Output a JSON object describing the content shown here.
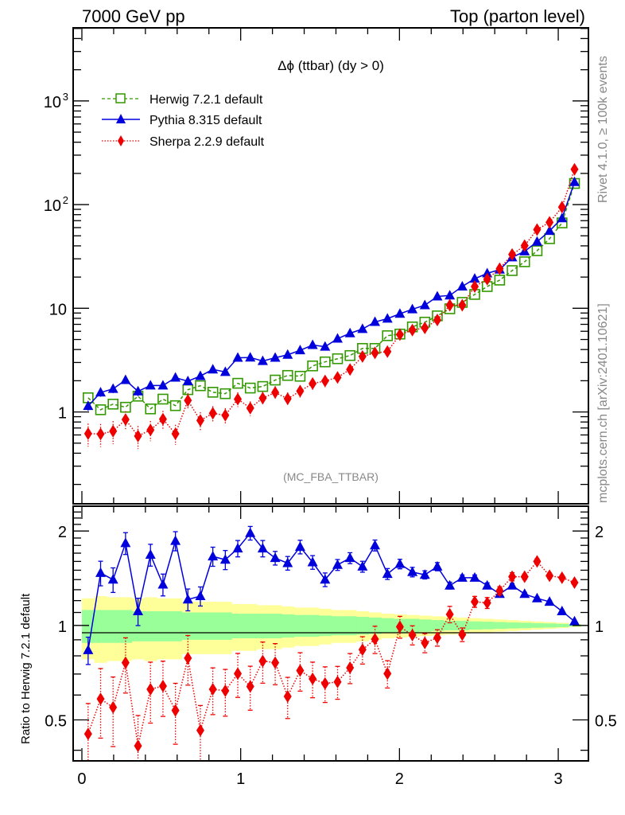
{
  "header": {
    "left": "7000 GeV pp",
    "right": "Top (parton level)"
  },
  "side_text": {
    "rivet": "Rivet 4.1.0, ≥ 100k events",
    "mcplots": "mcplots.cern.ch [arXiv:2401.10621]"
  },
  "chart_data": [
    {
      "type": "line",
      "title": "Δϕ (ttbar) (dy > 0)",
      "watermark": "(MC_FBA_TTBAR)",
      "xlabel": "",
      "ylabel": "",
      "yscale": "log",
      "xlim": [
        -0.055,
        3.19
      ],
      "ylim": [
        0.13,
        5070
      ],
      "x_ticks": [
        0,
        1,
        2,
        3
      ],
      "y_ticks": [
        {
          "value": 1000,
          "label": "10",
          "sup": "3"
        },
        {
          "value": 100,
          "label": "10",
          "sup": "2"
        },
        {
          "value": 10,
          "label": "10",
          "sup": ""
        },
        {
          "value": 1,
          "label": "1",
          "sup": ""
        }
      ],
      "legend_position": "top-left",
      "bins": 40,
      "x_range": [
        0,
        3.14159
      ],
      "series": [
        {
          "name": "Herwig 7.2.1 default",
          "color": "#339900",
          "marker": "open-square",
          "linestyle": "dashed",
          "values": [
            1.37,
            1.05,
            1.19,
            1.11,
            1.42,
            1.07,
            1.33,
            1.15,
            1.64,
            1.79,
            1.55,
            1.5,
            1.89,
            1.7,
            1.76,
            2.03,
            2.25,
            2.21,
            2.78,
            3.04,
            3.26,
            3.5,
            4.1,
            4.1,
            5.44,
            5.64,
            6.61,
            7.35,
            8.45,
            9.89,
            11.4,
            13.6,
            16.2,
            18.7,
            23.1,
            28.1,
            35.9,
            46.9,
            66.6,
            160
          ]
        },
        {
          "name": "Pythia 8.315 default",
          "color": "#0000dd",
          "marker": "filled-triangle",
          "linestyle": "solid",
          "values": [
            1.14,
            1.54,
            1.67,
            2.03,
            1.58,
            1.8,
            1.8,
            2.14,
            1.98,
            2.22,
            2.57,
            2.43,
            3.33,
            3.35,
            3.1,
            3.33,
            3.56,
            3.93,
            4.42,
            4.26,
            5.09,
            5.74,
            6.31,
            7.38,
            7.94,
            8.85,
            9.78,
            10.7,
            13.0,
            13.3,
            16.2,
            19.3,
            21.7,
            23.6,
            31.0,
            35.4,
            43.8,
            55.8,
            73.9,
            165
          ]
        },
        {
          "name": "Sherpa 2.2.9 default",
          "color": "#ee0000",
          "marker": "filled-diamond",
          "linestyle": "dotted",
          "values": [
            0.618,
            0.612,
            0.652,
            0.845,
            0.586,
            0.67,
            0.853,
            0.616,
            1.29,
            0.829,
            0.97,
            0.929,
            1.33,
            1.09,
            1.36,
            1.54,
            1.34,
            1.59,
            1.88,
            1.99,
            2.15,
            2.57,
            3.43,
            3.71,
            3.82,
            5.58,
            6.16,
            6.47,
            7.72,
            10.7,
            10.7,
            16.2,
            19.1,
            24.1,
            33.0,
            40.2,
            57.4,
            67.5,
            94.6,
            219
          ]
        }
      ]
    },
    {
      "type": "line",
      "title": "",
      "xlabel": "",
      "ylabel": "Ratio to Herwig 7.2.1 default",
      "yscale": "log",
      "xlim": [
        -0.055,
        3.19
      ],
      "ylim": [
        0.37,
        2.4
      ],
      "x_ticks": [
        0,
        1,
        2,
        3
      ],
      "y_ticks": [
        {
          "value": 2,
          "label": "2"
        },
        {
          "value": 1,
          "label": "1"
        },
        {
          "value": 0.5,
          "label": "0.5"
        }
      ],
      "reference_line": 1,
      "band_inner_halfwidth": [
        0.12,
        0.12,
        0.12,
        0.12,
        0.11,
        0.11,
        0.11,
        0.11,
        0.1,
        0.1,
        0.1,
        0.1,
        0.09,
        0.09,
        0.09,
        0.09,
        0.085,
        0.08,
        0.08,
        0.075,
        0.07,
        0.07,
        0.065,
        0.06,
        0.055,
        0.05,
        0.05,
        0.045,
        0.04,
        0.035,
        0.035,
        0.03,
        0.028,
        0.025,
        0.022,
        0.02,
        0.017,
        0.015,
        0.012,
        0.008
      ],
      "band_outer_halfwidth": [
        0.22,
        0.24,
        0.23,
        0.23,
        0.22,
        0.23,
        0.22,
        0.22,
        0.19,
        0.19,
        0.19,
        0.19,
        0.17,
        0.17,
        0.16,
        0.16,
        0.15,
        0.14,
        0.14,
        0.13,
        0.12,
        0.12,
        0.11,
        0.1,
        0.09,
        0.085,
        0.08,
        0.075,
        0.07,
        0.065,
        0.06,
        0.055,
        0.05,
        0.045,
        0.04,
        0.035,
        0.03,
        0.025,
        0.02,
        0.012
      ],
      "series": [
        {
          "name": "Pythia 8.315 default",
          "color": "#0000dd",
          "values": [
            0.834,
            1.47,
            1.4,
            1.83,
            1.11,
            1.68,
            1.35,
            1.86,
            1.21,
            1.24,
            1.66,
            1.62,
            1.76,
            1.97,
            1.76,
            1.64,
            1.58,
            1.78,
            1.59,
            1.4,
            1.56,
            1.64,
            1.54,
            1.8,
            1.46,
            1.57,
            1.48,
            1.45,
            1.54,
            1.34,
            1.42,
            1.42,
            1.34,
            1.26,
            1.34,
            1.26,
            1.22,
            1.19,
            1.11,
            1.03
          ],
          "rel_err": [
            0.1,
            0.09,
            0.09,
            0.08,
            0.1,
            0.08,
            0.08,
            0.07,
            0.08,
            0.07,
            0.07,
            0.07,
            0.06,
            0.05,
            0.06,
            0.05,
            0.05,
            0.05,
            0.05,
            0.05,
            0.04,
            0.04,
            0.04,
            0.04,
            0.04,
            0.035,
            0.035,
            0.03,
            0.03,
            0.025,
            0.02,
            0.02,
            0.02,
            0.015,
            0.015,
            0.012,
            0.01,
            0.01,
            0.008,
            0.005
          ]
        },
        {
          "name": "Sherpa 2.2.9 default",
          "color": "#ee0000",
          "values": [
            0.451,
            0.583,
            0.548,
            0.761,
            0.413,
            0.626,
            0.641,
            0.536,
            0.787,
            0.463,
            0.626,
            0.619,
            0.702,
            0.639,
            0.77,
            0.761,
            0.594,
            0.718,
            0.676,
            0.653,
            0.661,
            0.733,
            0.837,
            0.904,
            0.702,
            0.99,
            0.932,
            0.88,
            0.914,
            1.085,
            0.935,
            1.19,
            1.18,
            1.29,
            1.43,
            1.43,
            1.6,
            1.44,
            1.42,
            1.37
          ],
          "rel_err": [
            0.25,
            0.25,
            0.25,
            0.2,
            0.25,
            0.22,
            0.2,
            0.22,
            0.18,
            0.2,
            0.17,
            0.17,
            0.16,
            0.16,
            0.15,
            0.15,
            0.15,
            0.14,
            0.13,
            0.13,
            0.12,
            0.11,
            0.1,
            0.1,
            0.1,
            0.08,
            0.07,
            0.07,
            0.06,
            0.06,
            0.05,
            0.04,
            0.04,
            0.03,
            0.03,
            0.02,
            0.02,
            0.02,
            0.015,
            0.01
          ]
        }
      ]
    }
  ]
}
